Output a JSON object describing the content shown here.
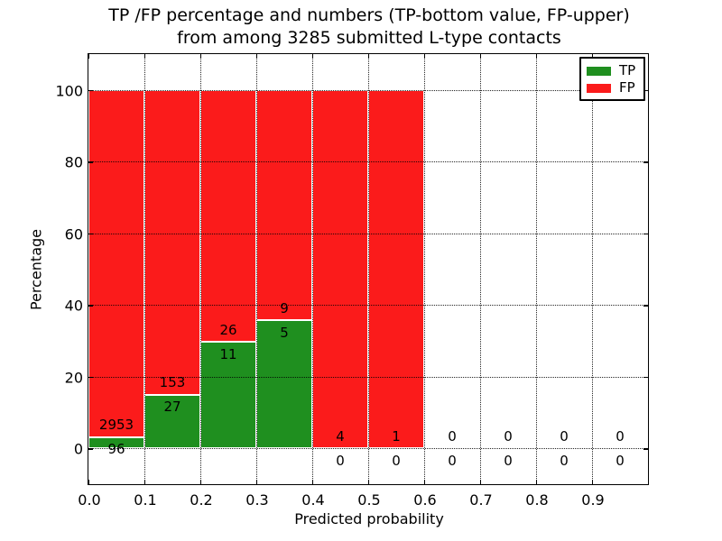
{
  "title": {
    "line1": "TP /FP percentage and numbers (TP-bottom value, FP-upper)",
    "line2": "from among 3285 submitted L-type contacts"
  },
  "chart_data": {
    "type": "bar",
    "stacked": true,
    "normalized_to_percent": true,
    "title": "TP /FP percentage and numbers (TP-bottom value, FP-upper) from among 3285 submitted L-type contacts",
    "total_submitted": 3285,
    "xlabel": "Predicted probability",
    "ylabel": "Percentage",
    "xlim": [
      0.0,
      1.0
    ],
    "ylim": [
      -10,
      110
    ],
    "xtick_labels": [
      "0.0",
      "0.1",
      "0.2",
      "0.3",
      "0.4",
      "0.5",
      "0.6",
      "0.7",
      "0.8",
      "0.9"
    ],
    "xtick_values": [
      0.0,
      0.1,
      0.2,
      0.3,
      0.4,
      0.5,
      0.6,
      0.7,
      0.8,
      0.9
    ],
    "ytick_labels": [
      "0",
      "20",
      "40",
      "60",
      "80",
      "100"
    ],
    "ytick_values": [
      0,
      20,
      40,
      60,
      80,
      100
    ],
    "grid": true,
    "grid_style": "dotted",
    "bin_edges": [
      0.0,
      0.1,
      0.2,
      0.3,
      0.4,
      0.5,
      0.6,
      0.7,
      0.8,
      0.9,
      1.0
    ],
    "series": [
      {
        "name": "TP",
        "counts": [
          96,
          27,
          11,
          5,
          0,
          0,
          0,
          0,
          0,
          0
        ],
        "color": "#1f8f1f"
      },
      {
        "name": "FP",
        "counts": [
          2953,
          153,
          26,
          9,
          4,
          1,
          0,
          0,
          0,
          0
        ],
        "color": "#fb1b1b"
      }
    ],
    "tp_percent_per_bin": [
      3.15,
      15.0,
      29.73,
      35.71,
      0.0,
      0.0,
      null,
      null,
      null,
      null
    ],
    "fp_percent_per_bin": [
      96.85,
      85.0,
      70.27,
      64.29,
      100.0,
      100.0,
      null,
      null,
      null,
      null
    ],
    "legend": {
      "position": "upper-right",
      "entries": [
        {
          "label": "TP",
          "color": "#1f8f1f"
        },
        {
          "label": "FP",
          "color": "#fb1b1b"
        }
      ]
    }
  }
}
